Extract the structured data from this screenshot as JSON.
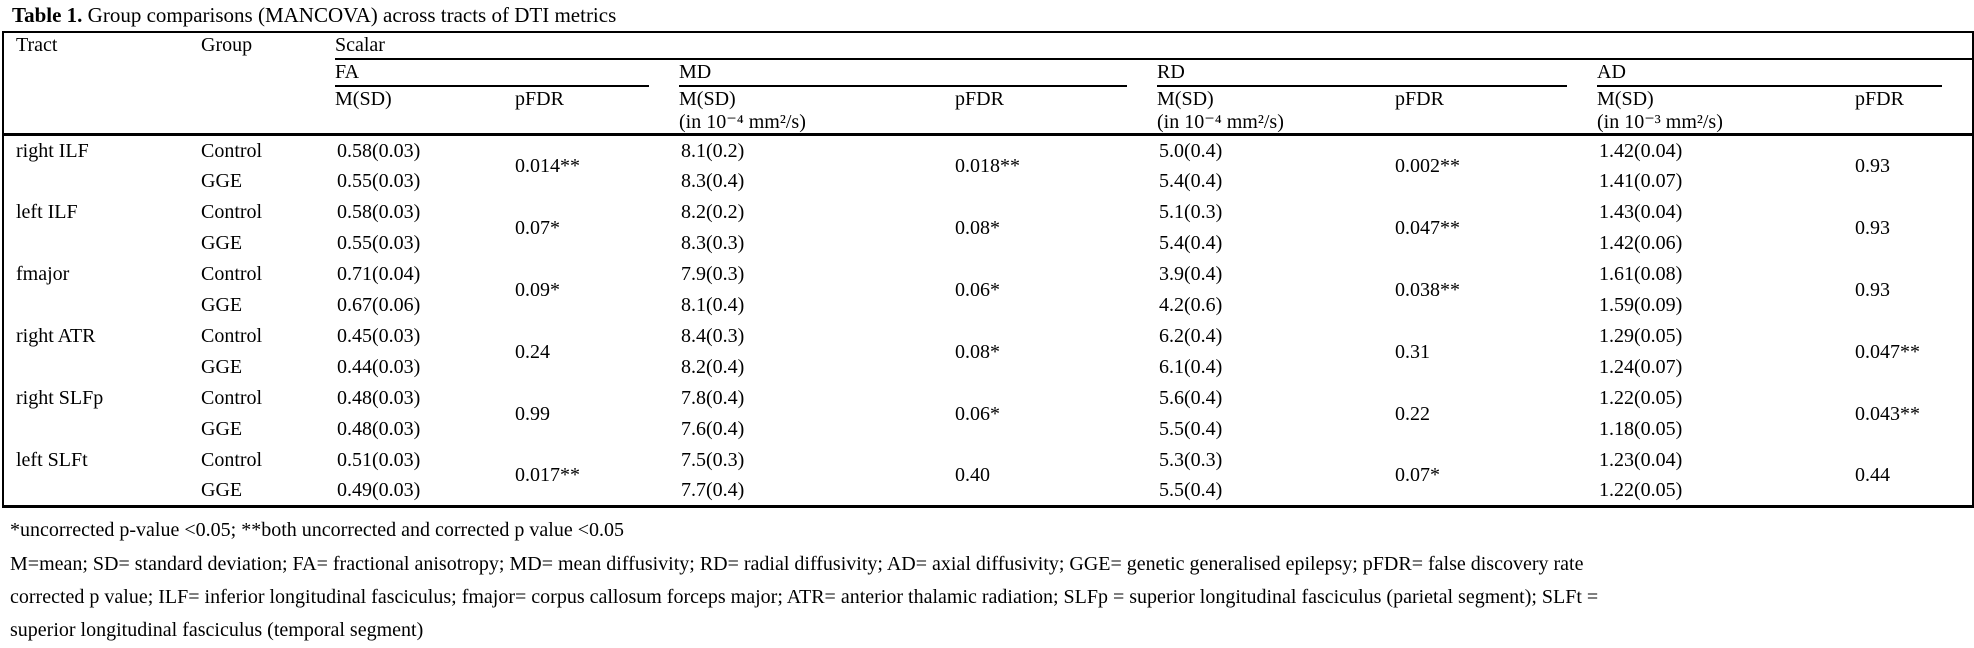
{
  "table": {
    "title_label": "Table 1.",
    "title_text": " Group comparisons (MANCOVA) across tracts of DTI metrics",
    "header": {
      "tract": "Tract",
      "group": "Group",
      "scalar": "Scalar",
      "msd_label": "M(SD)",
      "pfdr_label": "pFDR",
      "metrics": [
        {
          "name": "FA",
          "unit": ""
        },
        {
          "name": "MD",
          "unit": "(in 10⁻⁴ mm²/s)"
        },
        {
          "name": "RD",
          "unit": "(in 10⁻⁴ mm²/s)"
        },
        {
          "name": "AD",
          "unit": "(in 10⁻³ mm²/s)"
        }
      ]
    },
    "groups": {
      "control": "Control",
      "gge": "GGE"
    },
    "rows": [
      {
        "tract": "right ILF",
        "fa": {
          "control": "0.58(0.03)",
          "gge": "0.55(0.03)",
          "pfdr": "0.014**"
        },
        "md": {
          "control": "8.1(0.2)",
          "gge": "8.3(0.4)",
          "pfdr": "0.018**"
        },
        "rd": {
          "control": "5.0(0.4)",
          "gge": "5.4(0.4)",
          "pfdr": "0.002**"
        },
        "ad": {
          "control": "1.42(0.04)",
          "gge": "1.41(0.07)",
          "pfdr": "0.93"
        }
      },
      {
        "tract": "left ILF",
        "fa": {
          "control": "0.58(0.03)",
          "gge": "0.55(0.03)",
          "pfdr": "0.07*"
        },
        "md": {
          "control": "8.2(0.2)",
          "gge": "8.3(0.3)",
          "pfdr": "0.08*"
        },
        "rd": {
          "control": "5.1(0.3)",
          "gge": "5.4(0.4)",
          "pfdr": "0.047**"
        },
        "ad": {
          "control": "1.43(0.04)",
          "gge": "1.42(0.06)",
          "pfdr": "0.93"
        }
      },
      {
        "tract": "fmajor",
        "fa": {
          "control": "0.71(0.04)",
          "gge": "0.67(0.06)",
          "pfdr": "0.09*"
        },
        "md": {
          "control": "7.9(0.3)",
          "gge": "8.1(0.4)",
          "pfdr": "0.06*"
        },
        "rd": {
          "control": "3.9(0.4)",
          "gge": "4.2(0.6)",
          "pfdr": "0.038**"
        },
        "ad": {
          "control": "1.61(0.08)",
          "gge": "1.59(0.09)",
          "pfdr": "0.93"
        }
      },
      {
        "tract": "right ATR",
        "fa": {
          "control": "0.45(0.03)",
          "gge": "0.44(0.03)",
          "pfdr": "0.24"
        },
        "md": {
          "control": "8.4(0.3)",
          "gge": "8.2(0.4)",
          "pfdr": "0.08*"
        },
        "rd": {
          "control": "6.2(0.4)",
          "gge": "6.1(0.4)",
          "pfdr": "0.31"
        },
        "ad": {
          "control": "1.29(0.05)",
          "gge": "1.24(0.07)",
          "pfdr": "0.047**"
        }
      },
      {
        "tract": "right SLFp",
        "fa": {
          "control": "0.48(0.03)",
          "gge": "0.48(0.03)",
          "pfdr": "0.99"
        },
        "md": {
          "control": "7.8(0.4)",
          "gge": "7.6(0.4)",
          "pfdr": "0.06*"
        },
        "rd": {
          "control": "5.6(0.4)",
          "gge": "5.5(0.4)",
          "pfdr": "0.22"
        },
        "ad": {
          "control": "1.22(0.05)",
          "gge": "1.18(0.05)",
          "pfdr": "0.043**"
        }
      },
      {
        "tract": "left SLFt",
        "fa": {
          "control": "0.51(0.03)",
          "gge": "0.49(0.03)",
          "pfdr": "0.017**"
        },
        "md": {
          "control": "7.5(0.3)",
          "gge": "7.7(0.4)",
          "pfdr": "0.40"
        },
        "rd": {
          "control": "5.3(0.3)",
          "gge": "5.5(0.4)",
          "pfdr": "0.07*"
        },
        "ad": {
          "control": "1.23(0.04)",
          "gge": "1.22(0.05)",
          "pfdr": "0.44"
        }
      }
    ],
    "footnotes": {
      "significance": "*uncorrected p-value <0.05; **both uncorrected and corrected p value <0.05",
      "abbreviations": "M=mean; SD= standard deviation; FA= fractional anisotropy; MD= mean diffusivity; RD= radial diffusivity; AD= axial diffusivity; GGE= genetic generalised epilepsy; pFDR= false discovery rate corrected p value; ILF= inferior longitudinal fasciculus; fmajor= corpus callosum forceps major; ATR= anterior thalamic radiation; SLFp = superior longitudinal fasciculus (parietal segment); SLFt = superior longitudinal fasciculus (temporal segment)"
    }
  }
}
